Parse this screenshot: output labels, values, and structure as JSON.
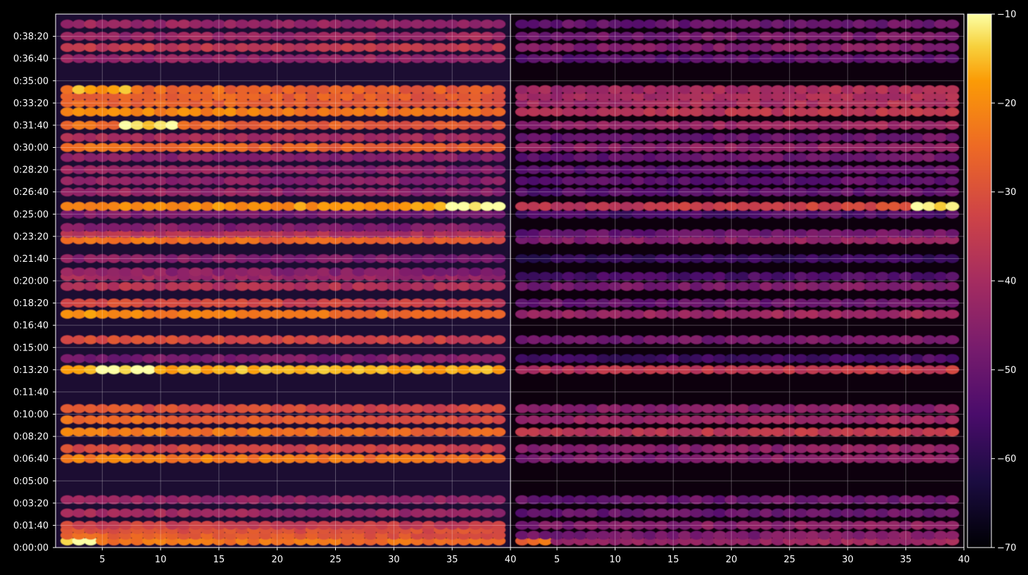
{
  "chart_data": {
    "type": "heatmap",
    "title": "",
    "colormap": "inferno",
    "background": "#000000",
    "colorbar": {
      "range": [
        -70,
        -10
      ],
      "ticks": [
        -10,
        -20,
        -30,
        -40,
        -50,
        -60,
        -70
      ],
      "tick_labels": [
        "−10",
        "−20",
        "−30",
        "−40",
        "−50",
        "−60",
        "−70"
      ]
    },
    "panels": [
      {
        "name": "left",
        "xlim": [
          1,
          40
        ],
        "x_ticks": [
          5,
          10,
          15,
          20,
          25,
          30,
          35,
          40
        ],
        "x_tick_labels": [
          "5",
          "10",
          "15",
          "20",
          "25",
          "30",
          "35",
          "40"
        ],
        "bands": [
          {
            "t": 30,
            "level": -24,
            "slope": -0.05,
            "peak_x": 2,
            "peak": -13
          },
          {
            "t": 55,
            "level": -28,
            "slope": -0.1
          },
          {
            "t": 80,
            "level": -30,
            "slope": -0.05
          },
          {
            "t": 100,
            "level": -34,
            "slope": -0.05
          },
          {
            "t": 155,
            "level": -42,
            "slope": -0.1
          },
          {
            "t": 215,
            "level": -43,
            "slope": -0.05
          },
          {
            "t": 400,
            "level": -23,
            "slope": -0.12
          },
          {
            "t": 445,
            "level": -33,
            "slope": -0.1
          },
          {
            "t": 520,
            "level": -24,
            "slope": -0.15
          },
          {
            "t": 575,
            "level": -28,
            "slope": -0.2
          },
          {
            "t": 625,
            "level": -31,
            "slope": -0.1
          },
          {
            "t": 800,
            "level": -16,
            "slope": 0.02,
            "peak_x": 7,
            "peak": -13
          },
          {
            "t": 850,
            "level": -47,
            "slope": 0.1
          },
          {
            "t": 935,
            "level": -32,
            "slope": -0.1
          },
          {
            "t": 1050,
            "level": -23,
            "slope": -0.2
          },
          {
            "t": 1100,
            "level": -33,
            "slope": -0.1
          },
          {
            "t": 1175,
            "level": -38,
            "slope": -0.05
          },
          {
            "t": 1220,
            "level": -42,
            "slope": -0.1
          },
          {
            "t": 1240,
            "level": -45,
            "slope": -0.1
          },
          {
            "t": 1300,
            "level": -46,
            "slope": -0.1
          },
          {
            "t": 1385,
            "level": -26,
            "slope": -0.2
          },
          {
            "t": 1412,
            "level": -38,
            "slope": -0.1
          },
          {
            "t": 1440,
            "level": -46,
            "slope": -0.05
          },
          {
            "t": 1500,
            "level": -48,
            "slope": -0.1
          },
          {
            "t": 1535,
            "level": -19,
            "slope": 0.05,
            "peak_x": 37,
            "peak": -12
          },
          {
            "t": 1600,
            "level": -44,
            "slope": -0.1
          },
          {
            "t": 1650,
            "level": -45,
            "slope": -0.05
          },
          {
            "t": 1700,
            "level": -44,
            "slope": -0.1
          },
          {
            "t": 1755,
            "level": -45,
            "slope": -0.05
          },
          {
            "t": 1800,
            "level": -26,
            "slope": -0.1
          },
          {
            "t": 1845,
            "level": -40,
            "slope": -0.05
          },
          {
            "t": 1900,
            "level": -27,
            "slope": -0.15,
            "peak_x": 9,
            "peak": -15
          },
          {
            "t": 1960,
            "level": -22,
            "slope": -0.15
          },
          {
            "t": 2000,
            "level": -27,
            "slope": -0.1
          },
          {
            "t": 2030,
            "level": -27,
            "slope": -0.1
          },
          {
            "t": 2060,
            "level": -26,
            "slope": -0.1,
            "peak_x": 5,
            "peak": -20
          },
          {
            "t": 2200,
            "level": -43,
            "slope": 0.05
          },
          {
            "t": 2250,
            "level": -36,
            "slope": -0.05
          },
          {
            "t": 2300,
            "level": -42,
            "slope": 0.05
          },
          {
            "t": 2355,
            "level": -43,
            "slope": -0.05
          }
        ]
      },
      {
        "name": "right",
        "xlim": [
          1,
          40
        ],
        "x_ticks": [
          5,
          10,
          15,
          20,
          25,
          30,
          35,
          40
        ],
        "x_tick_labels": [
          "5",
          "10",
          "15",
          "20",
          "25",
          "30",
          "35",
          "40"
        ],
        "bands": [
          {
            "t": 30,
            "level": -42,
            "slope": 0.05,
            "peak_x": 2,
            "peak": -28
          },
          {
            "t": 55,
            "level": -47,
            "slope": 0.1
          },
          {
            "t": 100,
            "level": -45,
            "slope": 0.1
          },
          {
            "t": 155,
            "level": -50,
            "slope": 0.05
          },
          {
            "t": 215,
            "level": -50,
            "slope": 0.05
          },
          {
            "t": 400,
            "level": -46,
            "slope": 0.15
          },
          {
            "t": 445,
            "level": -45,
            "slope": 0.1
          },
          {
            "t": 520,
            "level": -36,
            "slope": 0.05
          },
          {
            "t": 575,
            "level": -42,
            "slope": 0.05
          },
          {
            "t": 625,
            "level": -45,
            "slope": 0.05
          },
          {
            "t": 800,
            "level": -36,
            "slope": 0.1
          },
          {
            "t": 850,
            "level": -56,
            "slope": 0.1
          },
          {
            "t": 935,
            "level": -48,
            "slope": 0.1
          },
          {
            "t": 1050,
            "level": -42,
            "slope": 0.1
          },
          {
            "t": 1100,
            "level": -50,
            "slope": 0.05
          },
          {
            "t": 1175,
            "level": -47,
            "slope": 0.1
          },
          {
            "t": 1220,
            "level": -55,
            "slope": 0.05
          },
          {
            "t": 1300,
            "level": -58,
            "slope": 0.05
          },
          {
            "t": 1385,
            "level": -44,
            "slope": 0.15
          },
          {
            "t": 1412,
            "level": -50,
            "slope": 0.1
          },
          {
            "t": 1500,
            "level": -55,
            "slope": 0.05
          },
          {
            "t": 1535,
            "level": -34,
            "slope": 0.2,
            "peak_x": 38,
            "peak": -14
          },
          {
            "t": 1600,
            "level": -52,
            "slope": 0.1
          },
          {
            "t": 1650,
            "level": -52,
            "slope": 0.05
          },
          {
            "t": 1700,
            "level": -52,
            "slope": 0.05
          },
          {
            "t": 1755,
            "level": -50,
            "slope": 0.1
          },
          {
            "t": 1800,
            "level": -44,
            "slope": 0.05
          },
          {
            "t": 1845,
            "level": -50,
            "slope": 0.05
          },
          {
            "t": 1900,
            "level": -42,
            "slope": 0.1
          },
          {
            "t": 1960,
            "level": -37,
            "slope": 0.1
          },
          {
            "t": 2000,
            "level": -40,
            "slope": 0.1
          },
          {
            "t": 2030,
            "level": -40,
            "slope": 0.1
          },
          {
            "t": 2060,
            "level": -40,
            "slope": 0.1
          },
          {
            "t": 2200,
            "level": -52,
            "slope": 0.05
          },
          {
            "t": 2250,
            "level": -46,
            "slope": 0.05
          },
          {
            "t": 2300,
            "level": -48,
            "slope": 0.05
          },
          {
            "t": 2355,
            "level": -50,
            "slope": 0.05
          }
        ]
      }
    ],
    "ylim": [
      0,
      2400
    ],
    "y_ticks": [
      0,
      100,
      200,
      300,
      400,
      500,
      600,
      700,
      800,
      900,
      1000,
      1100,
      1200,
      1300,
      1400,
      1500,
      1600,
      1700,
      1800,
      1900,
      2000,
      2100,
      2200,
      2300
    ],
    "y_tick_labels": [
      "0:00:00",
      "0:01:40",
      "0:03:20",
      "0:05:00",
      "0:06:40",
      "0:08:20",
      "0:10:00",
      "0:11:40",
      "0:13:20",
      "0:15:00",
      "0:16:40",
      "0:18:20",
      "0:20:00",
      "0:21:40",
      "0:23:20",
      "0:25:00",
      "0:26:40",
      "0:28:20",
      "0:30:00",
      "0:31:40",
      "0:33:20",
      "0:35:00",
      "0:36:40",
      "0:38:20"
    ],
    "grid": true
  }
}
